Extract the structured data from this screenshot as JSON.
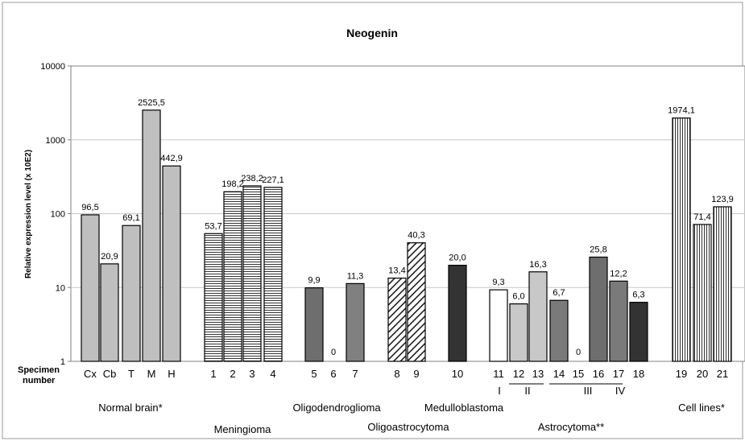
{
  "chart_data": {
    "type": "bar",
    "title": "Neogenin",
    "ylabel": "Relative expression level (x 10E2)",
    "xlabel": "Specimen number",
    "xlabel_lines": [
      "Specimen",
      "number"
    ],
    "yscale": "log",
    "ylim": [
      1,
      10000
    ],
    "yticks": [
      "1",
      "10",
      "100",
      "1000",
      "10000"
    ],
    "grid": true,
    "legend": "none",
    "bars": [
      {
        "category": "Cx",
        "value": 96.5,
        "label": "96,5",
        "group": "Normal brain*",
        "fill": "solid",
        "color": "#bfbfbf"
      },
      {
        "category": "Cb",
        "value": 20.9,
        "label": "20,9",
        "group": "Normal brain*",
        "fill": "solid",
        "color": "#bfbfbf"
      },
      {
        "category": "T",
        "value": 69.1,
        "label": "69,1",
        "group": "Normal brain*",
        "fill": "solid",
        "color": "#bfbfbf"
      },
      {
        "category": "M",
        "value": 2525.5,
        "label": "2525,5",
        "group": "Normal brain*",
        "fill": "solid",
        "color": "#bfbfbf"
      },
      {
        "category": "H",
        "value": 442.9,
        "label": "442,9",
        "group": "Normal brain*",
        "fill": "solid",
        "color": "#bfbfbf"
      },
      {
        "category": "1",
        "value": 53.7,
        "label": "53,7",
        "group": "Meningioma",
        "fill": "hlines",
        "color": "#ffffff"
      },
      {
        "category": "2",
        "value": 198.2,
        "label": "198,2",
        "group": "Meningioma",
        "fill": "hlines",
        "color": "#ffffff"
      },
      {
        "category": "3",
        "value": 238.2,
        "label": "238,2",
        "group": "Meningioma",
        "fill": "hlines",
        "color": "#ffffff"
      },
      {
        "category": "4",
        "value": 227.1,
        "label": "227,1",
        "group": "Meningioma",
        "fill": "hlines",
        "color": "#ffffff"
      },
      {
        "category": "5",
        "value": 9.9,
        "label": "9,9",
        "group": "Oligodendroglioma",
        "fill": "solid",
        "color": "#6e6e6e"
      },
      {
        "category": "6",
        "value": 0,
        "label": "0",
        "group": "Oligodendroglioma",
        "fill": "solid",
        "color": "#6e6e6e"
      },
      {
        "category": "7",
        "value": 11.3,
        "label": "11,3",
        "group": "Oligodendroglioma",
        "fill": "solid",
        "color": "#808080"
      },
      {
        "category": "8",
        "value": 13.4,
        "label": "13,4",
        "group": "Oligoastrocytoma",
        "fill": "diag",
        "color": "#ffffff"
      },
      {
        "category": "9",
        "value": 40.3,
        "label": "40,3",
        "group": "Oligoastrocytoma",
        "fill": "diag",
        "color": "#ffffff"
      },
      {
        "category": "10",
        "value": 20.0,
        "label": "20,0",
        "group": "Medulloblastoma",
        "fill": "solid",
        "color": "#333333"
      },
      {
        "category": "11",
        "value": 9.3,
        "label": "9,3",
        "group": "Astrocytoma**",
        "fill": "solid",
        "color": "#ffffff"
      },
      {
        "category": "12",
        "value": 6.0,
        "label": "6,0",
        "group": "Astrocytoma**",
        "fill": "solid",
        "color": "#c8c8c8"
      },
      {
        "category": "13",
        "value": 16.3,
        "label": "16,3",
        "group": "Astrocytoma**",
        "fill": "solid",
        "color": "#c8c8c8"
      },
      {
        "category": "14",
        "value": 6.7,
        "label": "6,7",
        "group": "Astrocytoma**",
        "fill": "solid",
        "color": "#7a7a7a"
      },
      {
        "category": "15",
        "value": 0,
        "label": "0",
        "group": "Astrocytoma**",
        "fill": "solid",
        "color": "#7a7a7a"
      },
      {
        "category": "16",
        "value": 25.8,
        "label": "25,8",
        "group": "Astrocytoma**",
        "fill": "solid",
        "color": "#6e6e6e"
      },
      {
        "category": "17",
        "value": 12.2,
        "label": "12,2",
        "group": "Astrocytoma**",
        "fill": "solid",
        "color": "#7a7a7a"
      },
      {
        "category": "18",
        "value": 6.3,
        "label": "6,3",
        "group": "Astrocytoma**",
        "fill": "solid",
        "color": "#333333"
      },
      {
        "category": "19",
        "value": 1974.1,
        "label": "1974,1",
        "group": "Cell lines*",
        "fill": "vlines",
        "color": "#ffffff"
      },
      {
        "category": "20",
        "value": 71.4,
        "label": "71,4",
        "group": "Cell lines*",
        "fill": "vlines",
        "color": "#ffffff"
      },
      {
        "category": "21",
        "value": 123.9,
        "label": "123,9",
        "group": "Cell lines*",
        "fill": "vlines",
        "color": "#ffffff"
      }
    ],
    "group_labels": [
      "Normal brain*",
      "Meningioma",
      "Oligodendroglioma",
      "Oligoastrocytoma",
      "Medulloblastoma",
      "Astrocytoma**",
      "Cell lines*"
    ],
    "grade_labels": [
      "I",
      "II",
      "III",
      "IV"
    ]
  }
}
